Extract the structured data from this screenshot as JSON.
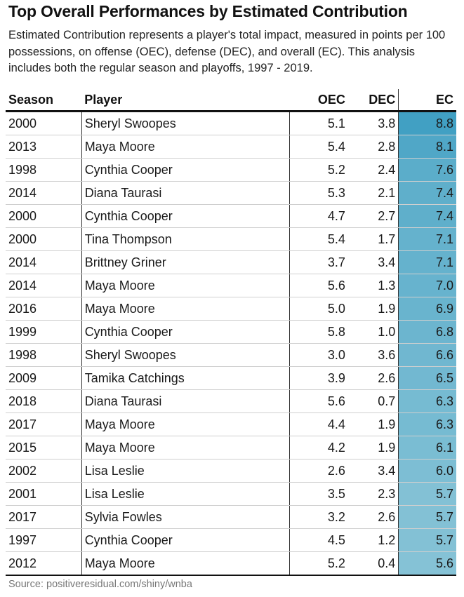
{
  "title": "Top Overall Performances by Estimated Contribution",
  "subtitle": "Estimated Contribution represents a player's total impact, measured in points per 100 possessions, on offense (OEC), defense (DEC), and overall (EC). This analysis includes both the regular season and playoffs, 1997 - 2019.",
  "source": "Source: positiveresidual.com/shiny/wnba",
  "colors": {
    "ec_low": "#85c2d6",
    "ec_high": "#41a0c3"
  },
  "chart_data": {
    "type": "table",
    "columns": [
      "Season",
      "Player",
      "OEC",
      "DEC",
      "EC"
    ],
    "rows": [
      {
        "season": "2000",
        "player": "Sheryl Swoopes",
        "oec": "5.1",
        "dec": "3.8",
        "ec": "8.8"
      },
      {
        "season": "2013",
        "player": "Maya Moore",
        "oec": "5.4",
        "dec": "2.8",
        "ec": "8.1"
      },
      {
        "season": "1998",
        "player": "Cynthia Cooper",
        "oec": "5.2",
        "dec": "2.4",
        "ec": "7.6"
      },
      {
        "season": "2014",
        "player": "Diana Taurasi",
        "oec": "5.3",
        "dec": "2.1",
        "ec": "7.4"
      },
      {
        "season": "2000",
        "player": "Cynthia Cooper",
        "oec": "4.7",
        "dec": "2.7",
        "ec": "7.4"
      },
      {
        "season": "2000",
        "player": "Tina Thompson",
        "oec": "5.4",
        "dec": "1.7",
        "ec": "7.1"
      },
      {
        "season": "2014",
        "player": "Brittney Griner",
        "oec": "3.7",
        "dec": "3.4",
        "ec": "7.1"
      },
      {
        "season": "2014",
        "player": "Maya Moore",
        "oec": "5.6",
        "dec": "1.3",
        "ec": "7.0"
      },
      {
        "season": "2016",
        "player": "Maya Moore",
        "oec": "5.0",
        "dec": "1.9",
        "ec": "6.9"
      },
      {
        "season": "1999",
        "player": "Cynthia Cooper",
        "oec": "5.8",
        "dec": "1.0",
        "ec": "6.8"
      },
      {
        "season": "1998",
        "player": "Sheryl Swoopes",
        "oec": "3.0",
        "dec": "3.6",
        "ec": "6.6"
      },
      {
        "season": "2009",
        "player": "Tamika Catchings",
        "oec": "3.9",
        "dec": "2.6",
        "ec": "6.5"
      },
      {
        "season": "2018",
        "player": "Diana Taurasi",
        "oec": "5.6",
        "dec": "0.7",
        "ec": "6.3"
      },
      {
        "season": "2017",
        "player": "Maya Moore",
        "oec": "4.4",
        "dec": "1.9",
        "ec": "6.3"
      },
      {
        "season": "2015",
        "player": "Maya Moore",
        "oec": "4.2",
        "dec": "1.9",
        "ec": "6.1"
      },
      {
        "season": "2002",
        "player": "Lisa Leslie",
        "oec": "2.6",
        "dec": "3.4",
        "ec": "6.0"
      },
      {
        "season": "2001",
        "player": "Lisa Leslie",
        "oec": "3.5",
        "dec": "2.3",
        "ec": "5.7"
      },
      {
        "season": "2017",
        "player": "Sylvia Fowles",
        "oec": "3.2",
        "dec": "2.6",
        "ec": "5.7"
      },
      {
        "season": "1997",
        "player": "Cynthia Cooper",
        "oec": "4.5",
        "dec": "1.2",
        "ec": "5.7"
      },
      {
        "season": "2012",
        "player": "Maya Moore",
        "oec": "5.2",
        "dec": "0.4",
        "ec": "5.6"
      }
    ]
  }
}
